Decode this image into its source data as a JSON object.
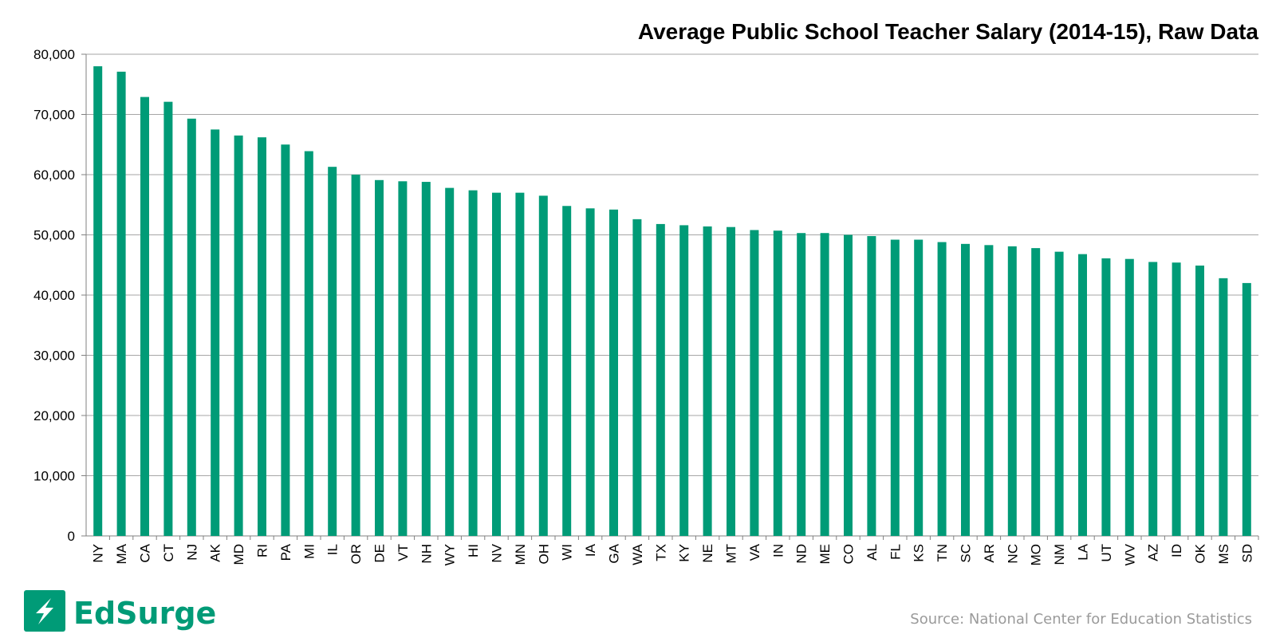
{
  "brand": {
    "name": "EdSurge",
    "color": "#009b77"
  },
  "source": "Source: National Center for Education Statistics",
  "chart_data": {
    "type": "bar",
    "title": "Average Public School Teacher Salary (2014-15), Raw Data",
    "xlabel": "",
    "ylabel": "",
    "ylim": [
      0,
      80000
    ],
    "yticks": [
      0,
      10000,
      20000,
      30000,
      40000,
      50000,
      60000,
      70000,
      80000
    ],
    "ytick_labels": [
      "0",
      "10,000",
      "20,000",
      "30,000",
      "40,000",
      "50,000",
      "60,000",
      "70,000",
      "80,000"
    ],
    "grid": true,
    "bar_color": "#009b77",
    "categories": [
      "NY",
      "MA",
      "CA",
      "CT",
      "NJ",
      "AK",
      "MD",
      "RI",
      "PA",
      "MI",
      "IL",
      "OR",
      "DE",
      "VT",
      "NH",
      "WY",
      "HI",
      "NV",
      "MN",
      "OH",
      "WI",
      "IA",
      "GA",
      "WA",
      "TX",
      "KY",
      "NE",
      "MT",
      "VA",
      "IN",
      "ND",
      "ME",
      "CO",
      "AL",
      "FL",
      "KS",
      "TN",
      "SC",
      "AR",
      "NC",
      "MO",
      "NM",
      "LA",
      "UT",
      "WV",
      "AZ",
      "ID",
      "OK",
      "MS",
      "SD"
    ],
    "values": [
      78000,
      77100,
      72900,
      72100,
      69300,
      67500,
      66500,
      66200,
      65000,
      63900,
      61300,
      60000,
      59100,
      58900,
      58800,
      57800,
      57400,
      57000,
      57000,
      56500,
      54800,
      54400,
      54200,
      52600,
      51800,
      51600,
      51400,
      51300,
      50800,
      50700,
      50300,
      50300,
      50000,
      49800,
      49200,
      49200,
      48800,
      48500,
      48300,
      48100,
      47800,
      47200,
      46800,
      46100,
      46000,
      45500,
      45400,
      44900,
      42800,
      42000
    ]
  }
}
